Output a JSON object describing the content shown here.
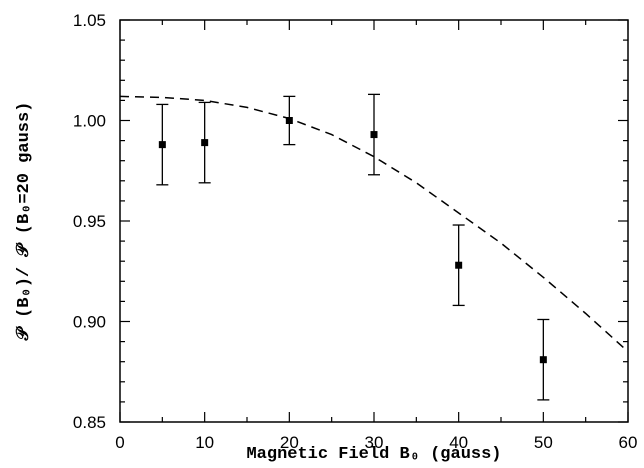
{
  "chart_data": {
    "type": "scatter",
    "xlabel": "Magnetic Field  B₀ (gauss)",
    "ylabel": "𝒫 (B₀)/ 𝒫 (B₀=20  gauss)",
    "xlim": [
      0,
      60
    ],
    "ylim": [
      0.85,
      1.05
    ],
    "x_ticks": [
      "0",
      "10",
      "20",
      "30",
      "40",
      "50",
      "60"
    ],
    "y_ticks": [
      "0.85",
      "0.90",
      "0.95",
      "1.00",
      "1.05"
    ],
    "grid": false,
    "series": [
      {
        "kind": "points-with-errorbars",
        "x": [
          5,
          10,
          20,
          30,
          40,
          50
        ],
        "y": [
          0.988,
          0.989,
          1.0,
          0.993,
          0.928,
          0.881
        ],
        "yerr": [
          0.02,
          0.02,
          0.012,
          0.02,
          0.02,
          0.02
        ]
      },
      {
        "kind": "dashed-curve",
        "x": [
          0,
          5,
          10,
          15,
          20,
          25,
          30,
          35,
          40,
          45,
          50,
          55,
          60
        ],
        "y": [
          1.012,
          1.0115,
          1.01,
          1.0065,
          1.001,
          0.993,
          0.982,
          0.969,
          0.954,
          0.939,
          0.922,
          0.904,
          0.885
        ]
      }
    ]
  }
}
